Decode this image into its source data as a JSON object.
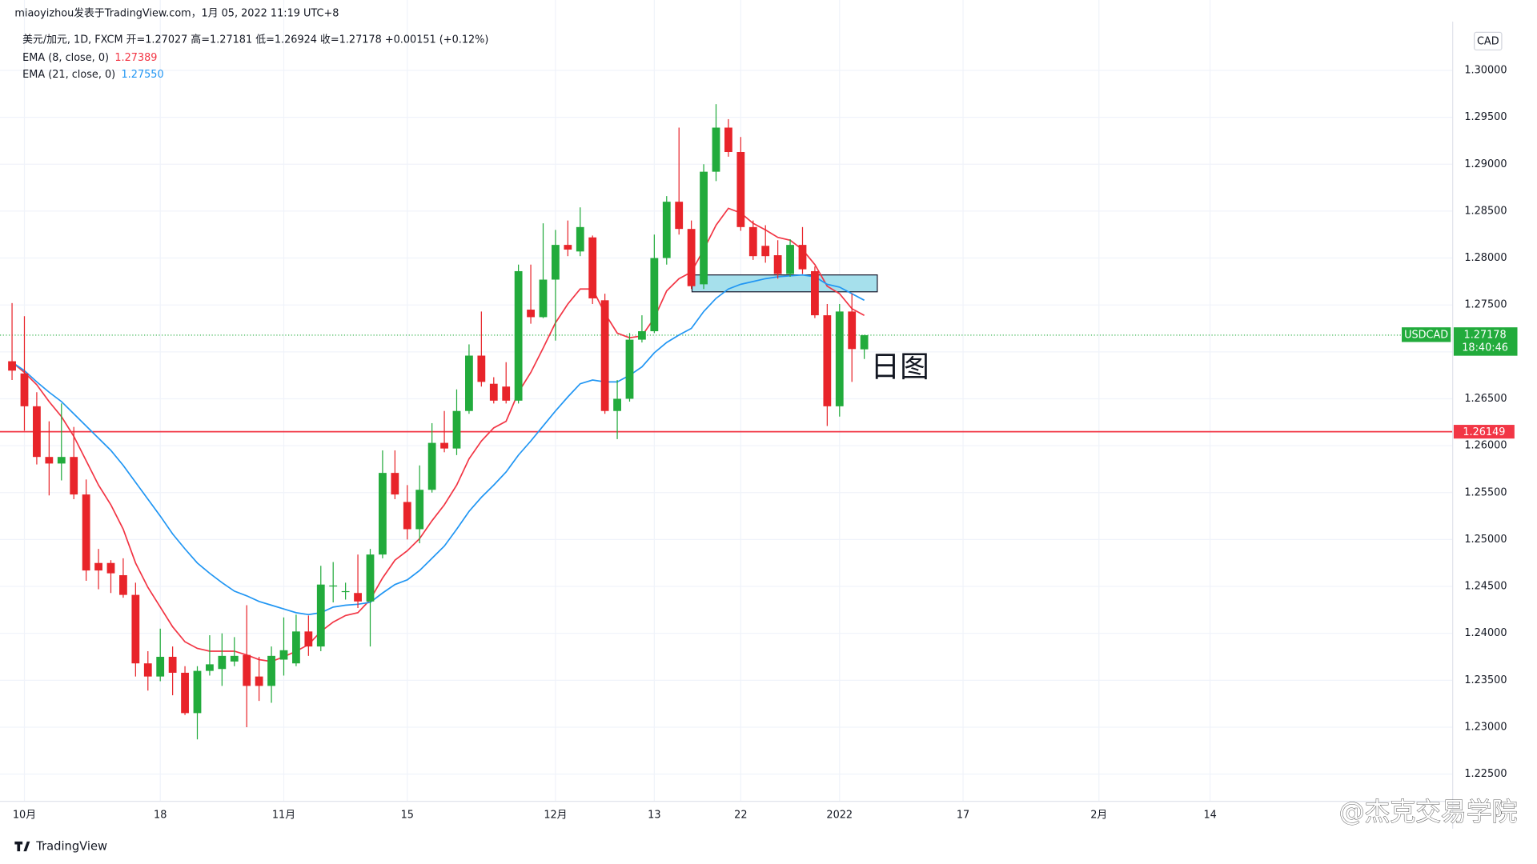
{
  "header": {
    "author_line": "miaoyizhou发表于TradingView.com，1月 05, 2022 11:19 UTC+8"
  },
  "chart_data": {
    "type": "candlestick",
    "legend_line": "美元/加元, 1D, FXCM  开=1.27027  高=1.27181  低=1.26924  收=1.27178  +0.00151 (+0.12%)",
    "currency": "CAD",
    "annotation": "日图",
    "grid": true,
    "up_color": "#22ab3c",
    "down_color": "#e8242a",
    "categories": [
      null,
      "10月",
      null,
      null,
      null,
      null,
      null,
      null,
      null,
      null,
      null,
      null,
      "18",
      null,
      null,
      null,
      null,
      null,
      null,
      null,
      null,
      null,
      "11月",
      null,
      null,
      null,
      null,
      null,
      null,
      null,
      null,
      null,
      "15",
      null,
      null,
      null,
      null,
      null,
      null,
      null,
      null,
      null,
      null,
      null,
      "12月",
      null,
      null,
      null,
      null,
      null,
      null,
      null,
      "13",
      null,
      null,
      null,
      null,
      null,
      null,
      "22",
      null,
      null,
      null,
      null,
      null,
      null,
      null,
      "2022",
      null,
      null,
      null,
      null,
      null,
      null,
      null,
      null,
      null,
      "17",
      null,
      null,
      null,
      null,
      null,
      null,
      null,
      null,
      null,
      null,
      "2月",
      null,
      null,
      null,
      null,
      null,
      null,
      null,
      null,
      "14",
      null,
      null,
      null,
      null,
      null,
      null,
      null,
      null,
      null,
      null,
      null,
      null,
      null,
      null,
      null,
      null,
      null,
      null
    ],
    "open": [
      1.269,
      1.2677,
      1.2642,
      1.2588,
      1.2581,
      1.2588,
      1.2548,
      1.2475,
      1.2475,
      1.2462,
      1.2441,
      1.2368,
      1.2354,
      1.2375,
      1.2358,
      1.2315,
      1.236,
      1.2362,
      1.237,
      1.2377,
      1.2354,
      1.2344,
      1.2372,
      1.2368,
      1.2402,
      1.2386,
      1.245,
      1.2444,
      1.2443,
      1.2434,
      1.2484,
      1.2571,
      1.254,
      1.2511,
      1.2553,
      1.2603,
      1.2597,
      1.2637,
      1.2696,
      1.2666,
      1.2663,
      1.2648,
      1.2745,
      1.2737,
      1.2777,
      1.2814,
      1.2807,
      1.2822,
      1.2755,
      1.2637,
      1.265,
      1.2713,
      1.2722,
      1.28,
      1.286,
      1.2831,
      1.2772,
      1.2892,
      1.2939,
      1.2913,
      1.2833,
      1.2813,
      1.2803,
      1.2783,
      1.2814,
      1.2786,
      1.2739,
      1.2642,
      1.2743,
      1.27027,
      null,
      null,
      null,
      null,
      null,
      null,
      null,
      null,
      null,
      null,
      null,
      null,
      null,
      null,
      null,
      null,
      null,
      null,
      null,
      null,
      null,
      null,
      null,
      null,
      null,
      null,
      null,
      null,
      null,
      null,
      null,
      null,
      null,
      null,
      null,
      null,
      null,
      null,
      null,
      null,
      null,
      null,
      null,
      null,
      null,
      null
    ],
    "high": [
      1.2752,
      1.2738,
      1.2657,
      1.2626,
      1.2645,
      1.262,
      1.2564,
      1.249,
      1.2478,
      1.248,
      1.2454,
      1.2381,
      1.2405,
      1.2386,
      1.2365,
      1.2365,
      1.2398,
      1.24,
      1.2396,
      1.243,
      1.2375,
      1.2386,
      1.2417,
      1.242,
      1.2419,
      1.2472,
      1.2476,
      1.2454,
      1.2484,
      1.249,
      1.2595,
      1.2595,
      1.2558,
      1.2579,
      1.2624,
      1.2637,
      1.266,
      1.2708,
      1.2743,
      1.2673,
      1.2689,
      1.2793,
      1.2793,
      1.2837,
      1.283,
      1.284,
      1.2854,
      1.2824,
      1.2762,
      1.267,
      1.272,
      1.2739,
      1.2825,
      1.2866,
      1.2939,
      1.284,
      1.29,
      1.2964,
      1.2948,
      1.2929,
      1.284,
      1.2835,
      1.2819,
      1.282,
      1.2833,
      1.2791,
      1.2751,
      1.2751,
      1.2762,
      1.27181,
      null,
      null,
      null,
      null,
      null,
      null,
      null,
      null,
      null,
      null,
      null,
      null,
      null,
      null,
      null,
      null,
      null,
      null,
      null,
      null,
      null,
      null,
      null,
      null,
      null,
      null,
      null,
      null,
      null,
      null,
      null,
      null,
      null,
      null,
      null,
      null,
      null,
      null,
      null,
      null,
      null,
      null,
      null,
      null,
      null,
      null
    ],
    "low": [
      1.267,
      1.2616,
      1.258,
      1.2547,
      1.2563,
      1.2543,
      1.2456,
      1.2447,
      1.2443,
      1.2438,
      1.2354,
      1.2339,
      1.2349,
      1.2334,
      1.2313,
      1.2287,
      1.2355,
      1.2344,
      1.2365,
      1.23,
      1.2328,
      1.2326,
      1.2355,
      1.2365,
      1.2376,
      1.2381,
      1.2433,
      1.2436,
      1.2427,
      1.2386,
      1.248,
      1.2543,
      1.25,
      1.2496,
      1.255,
      1.2593,
      1.259,
      1.2634,
      1.2663,
      1.2645,
      1.2645,
      1.2645,
      1.273,
      1.2736,
      1.2712,
      1.2802,
      1.2802,
      1.2751,
      1.2634,
      1.2607,
      1.2647,
      1.271,
      1.272,
      1.2793,
      1.2825,
      1.2767,
      1.2767,
      1.2882,
      1.2908,
      1.2829,
      1.2798,
      1.2795,
      1.2778,
      1.278,
      1.2783,
      1.2736,
      1.2621,
      1.2631,
      1.2668,
      1.26924,
      null,
      null,
      null,
      null,
      null,
      null,
      null,
      null,
      null,
      null,
      null,
      null,
      null,
      null,
      null,
      null,
      null,
      null,
      null,
      null,
      null,
      null,
      null,
      null,
      null,
      null,
      null,
      null,
      null,
      null,
      null,
      null,
      null,
      null,
      null,
      null,
      null,
      null,
      null,
      null,
      null,
      null,
      null,
      null,
      null,
      null
    ],
    "close": [
      1.268,
      1.2642,
      1.2588,
      1.2581,
      1.2588,
      1.2548,
      1.2467,
      1.2467,
      1.2464,
      1.2441,
      1.2368,
      1.2354,
      1.2375,
      1.2358,
      1.2315,
      1.236,
      1.2367,
      1.2376,
      1.2376,
      1.2344,
      1.2344,
      1.2376,
      1.2382,
      1.2402,
      1.2386,
      1.2452,
      1.2451,
      1.2445,
      1.2434,
      1.2484,
      1.2571,
      1.2548,
      1.2511,
      1.2553,
      1.2603,
      1.2597,
      1.2637,
      1.2696,
      1.2668,
      1.2648,
      1.2648,
      1.2786,
      1.2737,
      1.2777,
      1.2814,
      1.2809,
      1.2833,
      1.2757,
      1.2637,
      1.265,
      1.2713,
      1.2722,
      1.28,
      1.286,
      1.2831,
      1.277,
      1.2892,
      1.2939,
      1.2913,
      1.2833,
      1.2802,
      1.2802,
      1.2783,
      1.2814,
      1.2788,
      1.2739,
      1.2642,
      1.2743,
      1.2703,
      1.27178,
      null,
      null,
      null,
      null,
      null,
      null,
      null,
      null,
      null,
      null,
      null,
      null,
      null,
      null,
      null,
      null,
      null,
      null,
      null,
      null,
      null,
      null,
      null,
      null,
      null,
      null,
      null,
      null,
      null,
      null,
      null,
      null,
      null,
      null,
      null,
      null,
      null,
      null,
      null,
      null,
      null,
      null,
      null,
      null,
      null,
      null
    ],
    "series": [
      {
        "name": "EMA (8, close, 0)",
        "color": "#f23645",
        "last_label": "1.27389",
        "values": [
          1.2689,
          1.2678,
          1.2665,
          1.2647,
          1.2631,
          1.261,
          1.2584,
          1.2558,
          1.2537,
          1.2511,
          1.2475,
          1.2449,
          1.2428,
          1.2407,
          1.2391,
          1.2384,
          1.2381,
          1.2381,
          1.2381,
          1.2377,
          1.2372,
          1.237,
          1.2375,
          1.2381,
          1.2388,
          1.2402,
          1.2412,
          1.2419,
          1.2422,
          1.2436,
          1.2459,
          1.2478,
          1.2488,
          1.2501,
          1.252,
          1.2537,
          1.2558,
          1.2586,
          1.2605,
          1.2619,
          1.2626,
          1.2657,
          1.2678,
          1.2704,
          1.2731,
          1.2751,
          1.2767,
          1.2767,
          1.2741,
          1.272,
          1.2715,
          1.2717,
          1.2736,
          1.2765,
          1.2778,
          1.2785,
          1.2809,
          1.2835,
          1.2853,
          1.2848,
          1.2837,
          1.283,
          1.2822,
          1.2819,
          1.2809,
          1.2793,
          1.277,
          1.2762,
          1.2746,
          1.27389,
          null,
          null,
          null,
          null,
          null,
          null,
          null,
          null,
          null,
          null,
          null,
          null,
          null,
          null,
          null,
          null,
          null,
          null,
          null,
          null,
          null,
          null,
          null,
          null,
          null,
          null,
          null,
          null,
          null,
          null,
          null,
          null,
          null,
          null,
          null,
          null,
          null,
          null,
          null,
          null,
          null,
          null,
          null,
          null,
          null,
          null
        ]
      },
      {
        "name": "EMA (21, close, 0)",
        "color": "#2196f3",
        "last_label": "1.27550",
        "values": [
          1.2689,
          1.268,
          1.2668,
          1.2657,
          1.2647,
          1.2634,
          1.2621,
          1.2608,
          1.2595,
          1.2579,
          1.2561,
          1.2543,
          1.2525,
          1.2506,
          1.249,
          1.2475,
          1.2464,
          1.2454,
          1.2445,
          1.244,
          1.2434,
          1.243,
          1.2426,
          1.2422,
          1.242,
          1.2422,
          1.2428,
          1.243,
          1.2431,
          1.2433,
          1.2443,
          1.2452,
          1.2457,
          1.2467,
          1.248,
          1.2493,
          1.2511,
          1.253,
          1.2545,
          1.2558,
          1.2572,
          1.259,
          1.2605,
          1.2621,
          1.2637,
          1.2652,
          1.2666,
          1.267,
          1.2668,
          1.2668,
          1.2675,
          1.2684,
          1.2699,
          1.271,
          1.2718,
          1.2725,
          1.2743,
          1.2757,
          1.2767,
          1.2772,
          1.2775,
          1.2778,
          1.278,
          1.2781,
          1.2782,
          1.278,
          1.2772,
          1.2769,
          1.2762,
          1.2755,
          null,
          null,
          null,
          null,
          null,
          null,
          null,
          null,
          null,
          null,
          null,
          null,
          null,
          null,
          null,
          null,
          null,
          null,
          null,
          null,
          null,
          null,
          null,
          null,
          null,
          null,
          null,
          null,
          null,
          null,
          null,
          null,
          null,
          null,
          null,
          null,
          null,
          null,
          null,
          null,
          null,
          null,
          null,
          null,
          null,
          null
        ]
      }
    ],
    "ylim": [
      1.2221,
      1.3075
    ],
    "yticks": [
      {
        "value": 1.225,
        "label": "1.22500"
      },
      {
        "value": 1.23,
        "label": "1.23000"
      },
      {
        "value": 1.235,
        "label": "1.23500"
      },
      {
        "value": 1.24,
        "label": "1.24000"
      },
      {
        "value": 1.245,
        "label": "1.24500"
      },
      {
        "value": 1.25,
        "label": "1.25000"
      },
      {
        "value": 1.255,
        "label": "1.25500"
      },
      {
        "value": 1.26,
        "label": "1.26000"
      },
      {
        "value": 1.265,
        "label": "1.26500"
      },
      {
        "value": 1.27,
        "label": "1.27000"
      },
      {
        "value": 1.275,
        "label": "1.27500"
      },
      {
        "value": 1.28,
        "label": "1.28000"
      },
      {
        "value": 1.285,
        "label": "1.28500"
      },
      {
        "value": 1.29,
        "label": "1.29000"
      },
      {
        "value": 1.295,
        "label": "1.29500"
      },
      {
        "value": 1.3,
        "label": "1.30000"
      }
    ],
    "hline": {
      "value": 1.26149,
      "label": "1.26149",
      "color": "#f23645"
    },
    "last_price": {
      "symbol": "USDCAD",
      "value": 1.27178,
      "label": "1.27178",
      "countdown": "18:40:46",
      "color": "#22ab3c"
    },
    "zone": {
      "ylim": [
        1.2764,
        1.2782
      ],
      "color": "#a6e0ec"
    }
  },
  "footer": {
    "logo": "TradingView",
    "watermark": "@杰克交易学院"
  }
}
